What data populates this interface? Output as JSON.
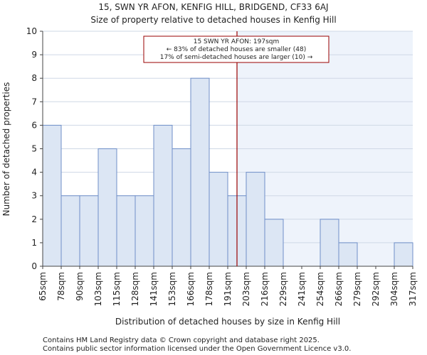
{
  "chart_data": {
    "type": "bar",
    "title": "15, SWN YR AFON, KENFIG HILL, BRIDGEND, CF33 6AJ",
    "subtitle": "Size of property relative to detached houses in Kenfig Hill",
    "xlabel": "Distribution of detached houses by size in Kenfig Hill",
    "ylabel": "Number of detached properties",
    "ylim": [
      0,
      10
    ],
    "yticks": [
      "0",
      "1",
      "2",
      "3",
      "4",
      "5",
      "6",
      "7",
      "8",
      "9",
      "10"
    ],
    "xtick_labels": [
      "65sqm",
      "78sqm",
      "90sqm",
      "103sqm",
      "115sqm",
      "128sqm",
      "141sqm",
      "153sqm",
      "166sqm",
      "178sqm",
      "191sqm",
      "203sqm",
      "216sqm",
      "229sqm",
      "241sqm",
      "254sqm",
      "266sqm",
      "279sqm",
      "292sqm",
      "304sqm",
      "317sqm"
    ],
    "values": [
      6,
      3,
      3,
      5,
      3,
      3,
      6,
      5,
      8,
      4,
      3,
      4,
      2,
      0,
      0,
      2,
      1,
      0,
      0,
      1
    ],
    "marker_bin_position": 10.5,
    "annotation": {
      "line1": "15 SWN YR AFON: 197sqm",
      "line2": "← 83% of detached houses are smaller (48)",
      "line3": "17% of semi-detached houses are larger (10) →"
    },
    "colors": {
      "bar_fill": "#dce6f4",
      "bar_edge": "#6f8fc8",
      "highlight_bg": "#eef3fb",
      "marker": "#990000",
      "grid": "#cfd8e6"
    }
  },
  "footer": {
    "line1": "Contains HM Land Registry data © Crown copyright and database right 2025.",
    "line2": "Contains public sector information licensed under the Open Government Licence v3.0."
  }
}
